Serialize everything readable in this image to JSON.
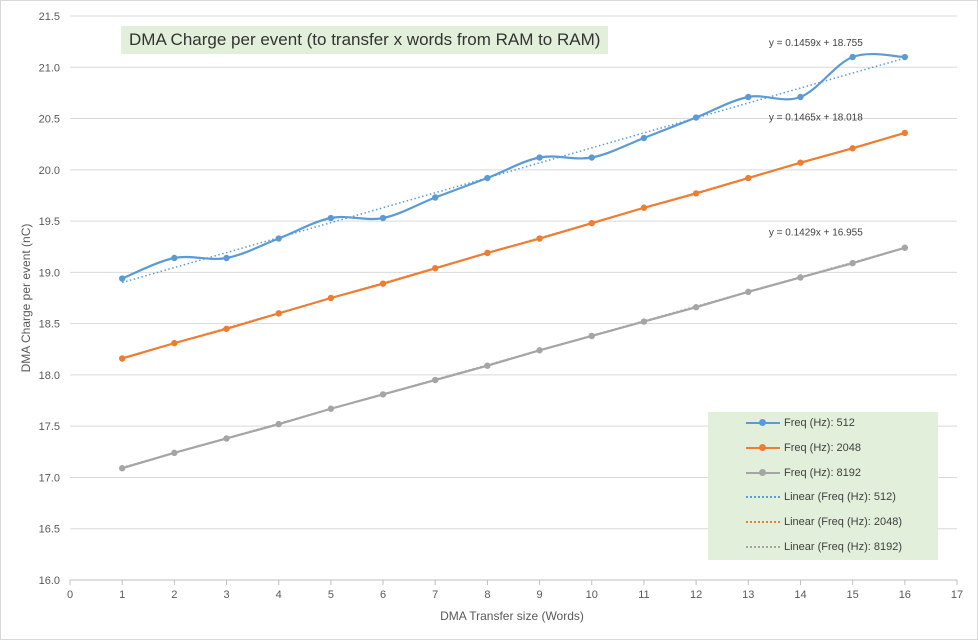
{
  "chart_data": {
    "type": "line",
    "title": "DMA Charge per event (to transfer x words from RAM to RAM)",
    "xlabel": "DMA Transfer size (Words)",
    "ylabel": "DMA Charge per event (nC)",
    "xlim": [
      0,
      17
    ],
    "ylim": [
      16.0,
      21.5
    ],
    "x_ticks": [
      "0",
      "1",
      "2",
      "3",
      "4",
      "5",
      "6",
      "7",
      "8",
      "9",
      "10",
      "11",
      "12",
      "13",
      "14",
      "15",
      "16",
      "17"
    ],
    "y_ticks": [
      "16.0",
      "16.5",
      "17.0",
      "17.5",
      "18.0",
      "18.5",
      "19.0",
      "19.5",
      "20.0",
      "20.5",
      "21.0",
      "21.5"
    ],
    "grid": "horizontal",
    "legend_position": "bottom-right",
    "x": [
      1,
      2,
      3,
      4,
      5,
      6,
      7,
      8,
      9,
      10,
      11,
      12,
      13,
      14,
      15,
      16
    ],
    "series": [
      {
        "name": "Freq (Hz): 512",
        "color": "#5b9bd5",
        "values": [
          18.94,
          19.14,
          19.14,
          19.33,
          19.53,
          19.53,
          19.73,
          19.92,
          20.12,
          20.12,
          20.31,
          20.51,
          20.71,
          20.71,
          21.1,
          21.1
        ],
        "trendline": {
          "label": "Linear (Freq (Hz): 512)",
          "slope": 0.1459,
          "intercept": 18.755,
          "equation": "y = 0.1459x + 18.755"
        }
      },
      {
        "name": "Freq (Hz): 2048",
        "color": "#ed7d31",
        "values": [
          18.16,
          18.31,
          18.45,
          18.6,
          18.75,
          18.89,
          19.04,
          19.19,
          19.33,
          19.48,
          19.63,
          19.77,
          19.92,
          20.07,
          20.21,
          20.36
        ],
        "trendline": {
          "label": "Linear (Freq (Hz): 2048)",
          "slope": 0.1465,
          "intercept": 18.018,
          "equation": "y = 0.1465x + 18.018"
        }
      },
      {
        "name": "Freq (Hz): 8192",
        "color": "#a5a5a5",
        "values": [
          17.09,
          17.24,
          17.38,
          17.52,
          17.67,
          17.81,
          17.95,
          18.09,
          18.24,
          18.38,
          18.52,
          18.66,
          18.81,
          18.95,
          19.09,
          19.24
        ],
        "trendline": {
          "label": "Linear (Freq (Hz): 8192)",
          "slope": 0.1429,
          "intercept": 16.955,
          "equation": "y = 0.1429x + 16.955"
        }
      }
    ]
  }
}
